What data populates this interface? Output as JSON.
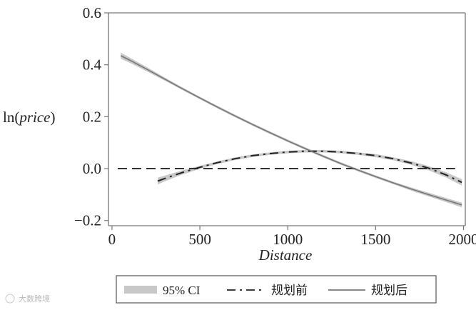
{
  "chart_data": {
    "type": "line",
    "xlabel": "Distance",
    "ylabel_prefix": "ln(",
    "ylabel_var": "price",
    "ylabel_suffix": ")",
    "xlim": [
      -20,
      2010
    ],
    "ylim": [
      -0.22,
      0.6
    ],
    "xticks": [
      0,
      500,
      1000,
      1500,
      2000
    ],
    "xtick_labels": [
      "0",
      "500",
      "1000",
      "1500",
      "2000"
    ],
    "yticks": [
      0.6,
      0.4,
      0.2,
      0.0,
      -0.2
    ],
    "ytick_labels": [
      "0.6",
      "0.4",
      "0.2",
      "0.0",
      "−0.2"
    ],
    "reference_line_y": 0,
    "grid": false,
    "legend_position": "bottom",
    "series": [
      {
        "name": "规划前",
        "style": "dashed",
        "color": "#222222",
        "ci_color": "#c8c8c8",
        "x": [
          260,
          300,
          400,
          500,
          600,
          700,
          800,
          900,
          1000,
          1100,
          1200,
          1300,
          1400,
          1500,
          1600,
          1700,
          1800,
          1900,
          1990
        ],
        "y": [
          -0.048,
          -0.038,
          -0.015,
          0.005,
          0.023,
          0.038,
          0.05,
          0.058,
          0.064,
          0.067,
          0.067,
          0.064,
          0.058,
          0.05,
          0.038,
          0.022,
          0.002,
          -0.024,
          -0.053
        ],
        "ci_halfwidth": [
          0.013,
          0.011,
          0.008,
          0.006,
          0.005,
          0.005,
          0.005,
          0.005,
          0.005,
          0.005,
          0.005,
          0.005,
          0.005,
          0.006,
          0.006,
          0.007,
          0.008,
          0.01,
          0.012
        ]
      },
      {
        "name": "规划后",
        "style": "solid",
        "color": "#777777",
        "ci_color": "#c8c8c8",
        "x": [
          50,
          100,
          200,
          300,
          400,
          500,
          600,
          700,
          800,
          900,
          1000,
          1100,
          1200,
          1300,
          1400,
          1500,
          1600,
          1700,
          1800,
          1900,
          1990
        ],
        "y": [
          0.435,
          0.418,
          0.382,
          0.345,
          0.308,
          0.272,
          0.237,
          0.203,
          0.17,
          0.138,
          0.107,
          0.077,
          0.048,
          0.02,
          -0.006,
          -0.031,
          -0.055,
          -0.078,
          -0.1,
          -0.121,
          -0.14
        ],
        "ci_halfwidth": [
          0.012,
          0.01,
          0.008,
          0.006,
          0.005,
          0.005,
          0.005,
          0.005,
          0.005,
          0.005,
          0.005,
          0.005,
          0.005,
          0.005,
          0.005,
          0.005,
          0.005,
          0.006,
          0.007,
          0.008,
          0.009
        ]
      }
    ],
    "legend": [
      {
        "kind": "ci",
        "label": "95% CI"
      },
      {
        "kind": "dashed",
        "label": "规划前"
      },
      {
        "kind": "solid",
        "label": "规划后"
      }
    ]
  },
  "watermark": "大数跨境",
  "colors": {
    "axis": "#777777",
    "ci_band": "#c8c8c8",
    "ref_line": "#222222"
  }
}
